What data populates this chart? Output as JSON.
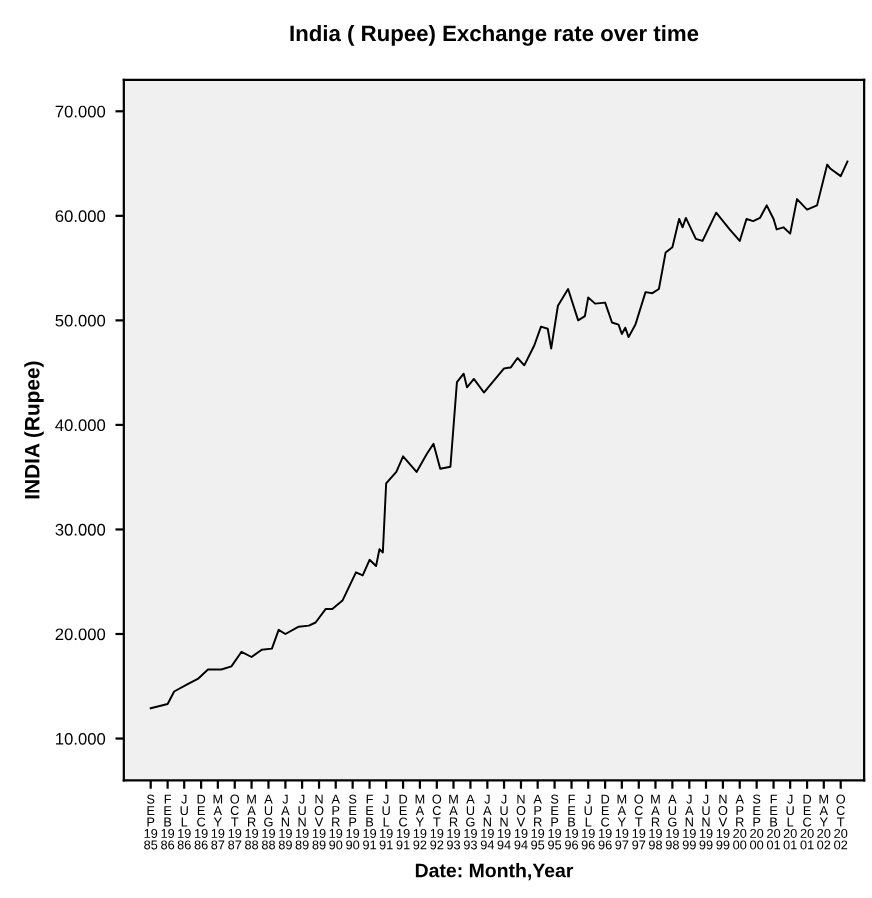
{
  "chart_data": {
    "type": "line",
    "title": "India ( Rupee) Exchange rate over time",
    "xlabel": "Date: Month,Year",
    "ylabel": "INDIA (Rupee)",
    "x": [
      "1985-09",
      "1986-02",
      "1986-04",
      "1986-08",
      "1986-11",
      "1987-02",
      "1987-06",
      "1987-09",
      "1987-12",
      "1988-03",
      "1988-06",
      "1988-09",
      "1988-11",
      "1989-01",
      "1989-05",
      "1989-08",
      "1989-10",
      "1990-01",
      "1990-03",
      "1990-06",
      "1990-10",
      "1990-12",
      "1991-02",
      "1991-04",
      "1991-05",
      "1991-06",
      "1991-07",
      "1991-10",
      "1991-12",
      "1992-04",
      "1992-07",
      "1992-09",
      "1992-11",
      "1993-02",
      "1993-04",
      "1993-06",
      "1993-07",
      "1993-09",
      "1993-12",
      "1994-06",
      "1994-08",
      "1994-10",
      "1994-12",
      "1995-03",
      "1995-05",
      "1995-07",
      "1995-08",
      "1995-10",
      "1996-01",
      "1996-04",
      "1996-06",
      "1996-07",
      "1996-09",
      "1996-12",
      "1997-02",
      "1997-04",
      "1997-05",
      "1997-06",
      "1997-07",
      "1997-09",
      "1997-12",
      "1998-02",
      "1998-04",
      "1998-06",
      "1998-08",
      "1998-10",
      "1998-11",
      "1998-12",
      "1999-03",
      "1999-05",
      "1999-09",
      "2000-01",
      "2000-04",
      "2000-06",
      "2000-08",
      "2000-10",
      "2000-12",
      "2001-02",
      "2001-03",
      "2001-05",
      "2001-07",
      "2001-09",
      "2001-12",
      "2002-03",
      "2002-06",
      "2002-07",
      "2002-10",
      "2002-12"
    ],
    "series": [
      {
        "color": "#000000",
        "values": [
          12.9,
          13.3,
          14.5,
          15.2,
          15.7,
          16.6,
          16.6,
          16.9,
          18.3,
          17.8,
          18.5,
          18.6,
          20.4,
          20.0,
          20.7,
          20.8,
          21.1,
          22.4,
          22.4,
          23.2,
          25.9,
          25.6,
          27.1,
          26.5,
          28.1,
          27.8,
          34.4,
          35.5,
          37.0,
          35.5,
          37.2,
          38.2,
          35.8,
          36.0,
          44.1,
          44.9,
          43.6,
          44.4,
          43.1,
          45.4,
          45.5,
          46.4,
          45.7,
          47.6,
          49.4,
          49.2,
          47.3,
          51.4,
          53.0,
          50.0,
          50.4,
          52.2,
          51.6,
          51.7,
          49.8,
          49.6,
          48.7,
          49.3,
          48.4,
          49.6,
          52.7,
          52.6,
          53.0,
          56.5,
          57.0,
          59.7,
          58.9,
          59.8,
          57.8,
          57.6,
          60.3,
          58.7,
          57.6,
          59.7,
          59.5,
          59.8,
          61.0,
          59.7,
          58.7,
          58.9,
          58.3,
          61.6,
          60.6,
          61.0,
          64.9,
          64.5,
          63.8,
          65.2
        ]
      }
    ],
    "xlim": [
      "1985-01",
      "2003-05"
    ],
    "xticks": [
      {
        "value": "1985-09",
        "label": "SEP 1985"
      },
      {
        "value": "1986-02",
        "label": "FEB 1986"
      },
      {
        "value": "1986-07",
        "label": "JUL 1986"
      },
      {
        "value": "1986-12",
        "label": "DEC 1986"
      },
      {
        "value": "1987-05",
        "label": "MAY 1987"
      },
      {
        "value": "1987-10",
        "label": "OCT 1987"
      },
      {
        "value": "1988-03",
        "label": "MAR 1988"
      },
      {
        "value": "1988-08",
        "label": "AUG 1988"
      },
      {
        "value": "1989-01",
        "label": "JAN 1989"
      },
      {
        "value": "1989-06",
        "label": "JUN 1989"
      },
      {
        "value": "1989-11",
        "label": "NOV 1989"
      },
      {
        "value": "1990-04",
        "label": "APR 1990"
      },
      {
        "value": "1990-09",
        "label": "SEP 1990"
      },
      {
        "value": "1991-02",
        "label": "FEB 1991"
      },
      {
        "value": "1991-07",
        "label": "JUL 1991"
      },
      {
        "value": "1991-12",
        "label": "DEC 1991"
      },
      {
        "value": "1992-05",
        "label": "MAY 1992"
      },
      {
        "value": "1992-10",
        "label": "OCT 1992"
      },
      {
        "value": "1993-03",
        "label": "MAR 1993"
      },
      {
        "value": "1993-08",
        "label": "AUG 1993"
      },
      {
        "value": "1994-01",
        "label": "JAN 1994"
      },
      {
        "value": "1994-06",
        "label": "JUN 1994"
      },
      {
        "value": "1994-11",
        "label": "NOV 1994"
      },
      {
        "value": "1995-04",
        "label": "APR 1995"
      },
      {
        "value": "1995-09",
        "label": "SEP 1995"
      },
      {
        "value": "1996-02",
        "label": "FEB 1996"
      },
      {
        "value": "1996-07",
        "label": "JUL 1996"
      },
      {
        "value": "1996-12",
        "label": "DEC 1996"
      },
      {
        "value": "1997-05",
        "label": "MAY 1997"
      },
      {
        "value": "1997-10",
        "label": "OCT 1997"
      },
      {
        "value": "1998-03",
        "label": "MAR 1998"
      },
      {
        "value": "1998-08",
        "label": "AUG 1998"
      },
      {
        "value": "1999-01",
        "label": "JAN 1999"
      },
      {
        "value": "1999-06",
        "label": "JUN 1999"
      },
      {
        "value": "1999-11",
        "label": "NOV 1999"
      },
      {
        "value": "2000-04",
        "label": "APR 2000"
      },
      {
        "value": "2000-09",
        "label": "SEP 2000"
      },
      {
        "value": "2001-02",
        "label": "FEB 2001"
      },
      {
        "value": "2001-07",
        "label": "JUL 2001"
      },
      {
        "value": "2001-12",
        "label": "DEC 2001"
      },
      {
        "value": "2002-05",
        "label": "MAY 2002"
      },
      {
        "value": "2002-10",
        "label": "OCT 2002"
      }
    ],
    "ylim": [
      6,
      73
    ],
    "yticks": [
      {
        "value": 10,
        "label": "10.000"
      },
      {
        "value": 20,
        "label": "20.000"
      },
      {
        "value": 30,
        "label": "30.000"
      },
      {
        "value": 40,
        "label": "40.000"
      },
      {
        "value": 50,
        "label": "50.000"
      },
      {
        "value": 60,
        "label": "60.000"
      },
      {
        "value": 70,
        "label": "70.000"
      }
    ],
    "grid": false,
    "marker": "none",
    "line_style": "solid"
  }
}
